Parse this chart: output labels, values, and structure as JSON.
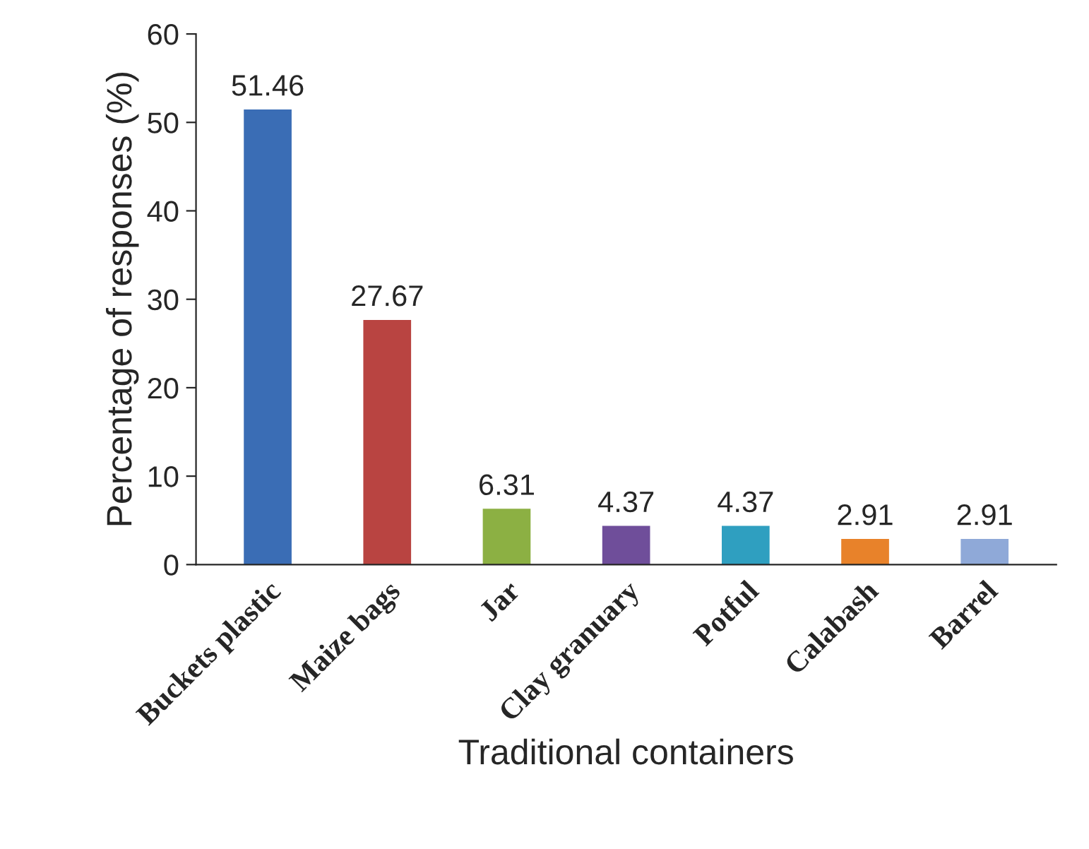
{
  "chart_data": {
    "type": "bar",
    "xlabel": "Traditional containers",
    "ylabel": "Percentage of responses (%)",
    "categories": [
      "Buckets plastic",
      "Maize bags",
      "Jar",
      "Clay granuary",
      "Potful",
      "Calabash",
      "Barrel"
    ],
    "values": [
      51.46,
      27.67,
      6.31,
      4.37,
      4.37,
      2.91,
      2.91
    ],
    "colors": [
      "#3a6db5",
      "#b94441",
      "#8cb043",
      "#6f4e9a",
      "#2f9fc0",
      "#e8822a",
      "#8fa9d8"
    ],
    "ylim": [
      0,
      60
    ],
    "yticks": [
      0,
      10,
      20,
      30,
      40,
      50,
      60
    ],
    "data_labels": true,
    "grid": false,
    "legend": false
  }
}
